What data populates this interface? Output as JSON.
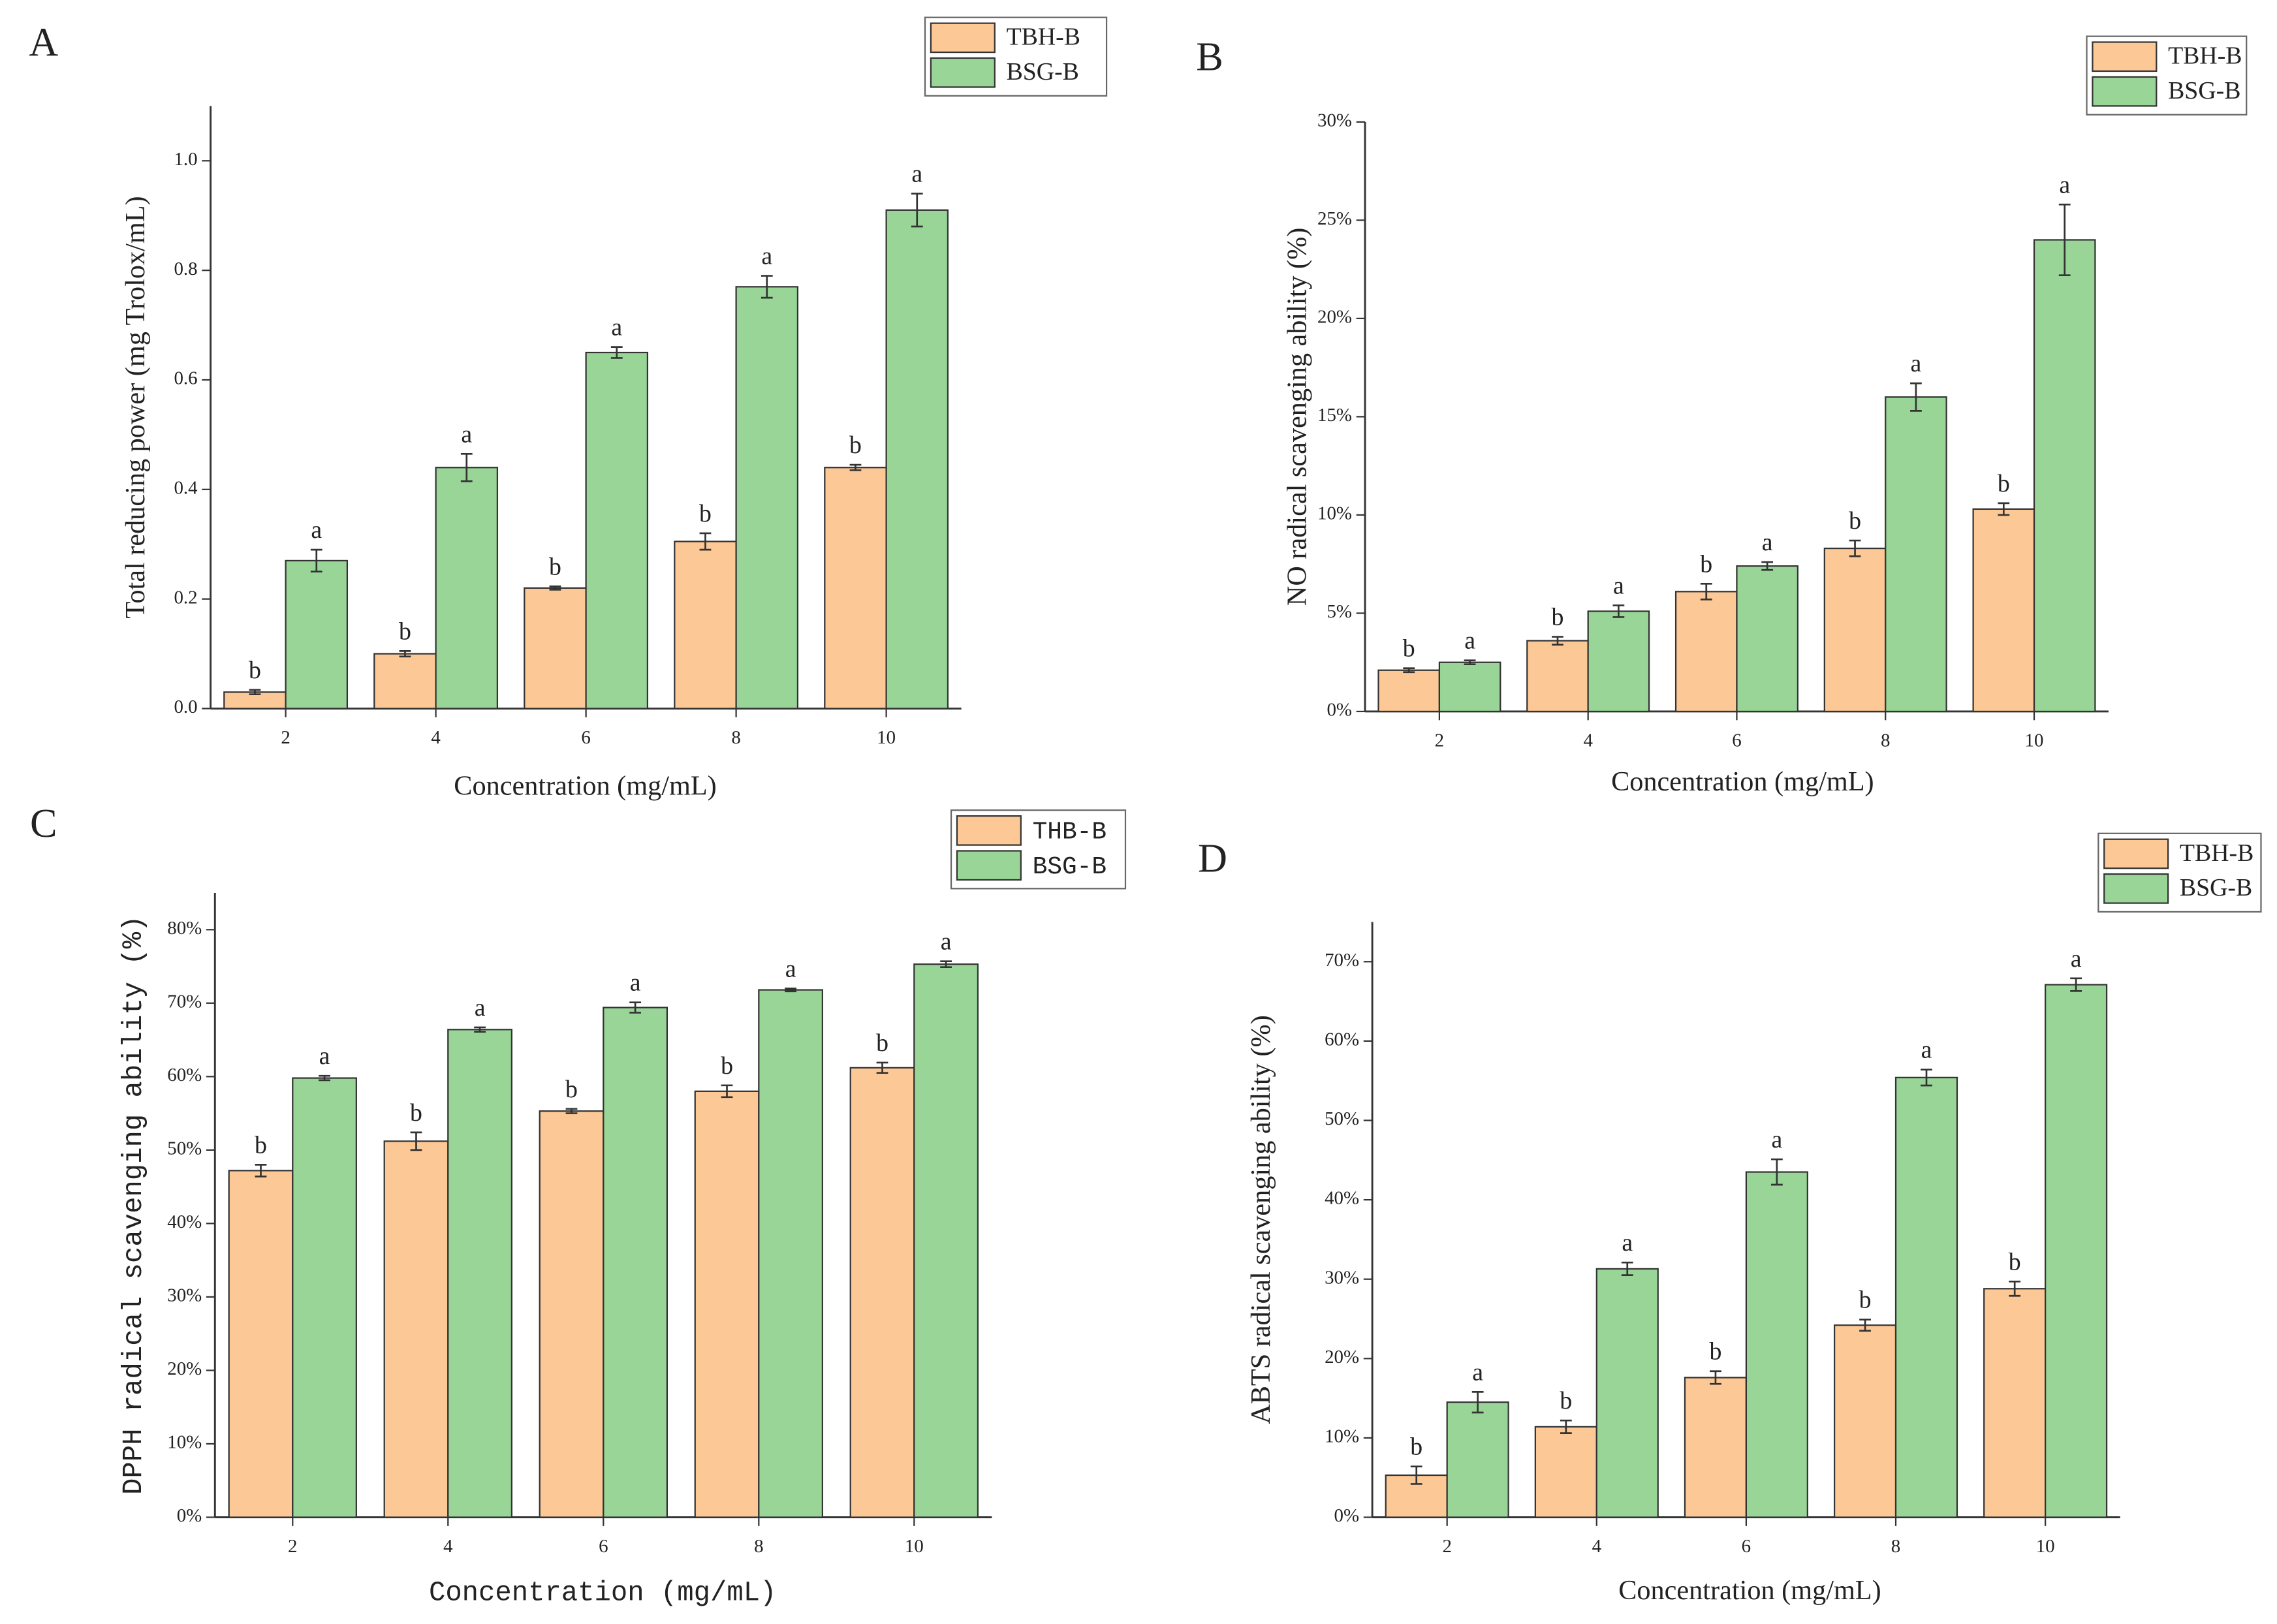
{
  "chart_data": [
    {
      "type": "bar",
      "panel": "A",
      "y_label": "Total reducing power (mg Trolox/mL)",
      "x_label": "Concentration (mg/mL)",
      "categories": [
        "2",
        "4",
        "6",
        "8",
        "10"
      ],
      "series": [
        {
          "name": "TBH-B",
          "color": "#fcc896",
          "values": [
            0.03,
            0.1,
            0.22,
            0.305,
            0.44
          ],
          "errors": [
            0.004,
            0.005,
            0.003,
            0.015,
            0.005
          ],
          "letters": [
            "b",
            "b",
            "b",
            "b",
            "b"
          ]
        },
        {
          "name": "BSG-B",
          "color": "#98d597",
          "values": [
            0.27,
            0.44,
            0.65,
            0.77,
            0.91
          ],
          "errors": [
            0.02,
            0.025,
            0.01,
            0.02,
            0.03
          ],
          "letters": [
            "a",
            "a",
            "a",
            "a",
            "a"
          ]
        }
      ],
      "ylim": [
        0,
        1.1
      ],
      "yticks": [
        {
          "value": 0,
          "label": "0.0"
        },
        0.2,
        0.4,
        0.6,
        0.8,
        {
          "value": 1,
          "label": "1.0"
        }
      ],
      "legend": "top-right"
    },
    {
      "type": "bar",
      "panel": "B",
      "y_label": "NO radical scavenging ability (%)",
      "x_label": "Concentration (mg/mL)",
      "categories": [
        "2",
        "4",
        "6",
        "8",
        "10"
      ],
      "series": [
        {
          "name": "TBH-B",
          "color": "#fcc896",
          "values": [
            2.1,
            3.6,
            6.1,
            8.3,
            10.3
          ],
          "errors": [
            0.1,
            0.2,
            0.4,
            0.4,
            0.3
          ],
          "letters": [
            "b",
            "b",
            "b",
            "b",
            "b"
          ]
        },
        {
          "name": "BSG-B",
          "color": "#98d597",
          "values": [
            2.5,
            5.1,
            7.4,
            16.0,
            24.0
          ],
          "errors": [
            0.1,
            0.3,
            0.2,
            0.7,
            1.8
          ],
          "letters": [
            "a",
            "a",
            "a",
            "a",
            "a"
          ]
        }
      ],
      "ylim": [
        0,
        30
      ],
      "yticks": [
        {
          "value": 0,
          "label": "0%"
        },
        {
          "value": 5,
          "label": "5%"
        },
        {
          "value": 10,
          "label": "10%"
        },
        {
          "value": 15,
          "label": "15%"
        },
        {
          "value": 20,
          "label": "20%"
        },
        {
          "value": 25,
          "label": "25%"
        },
        {
          "value": 30,
          "label": "30%"
        }
      ],
      "legend": "top-right"
    },
    {
      "type": "bar",
      "panel": "C",
      "y_label": "DPPH radical scavenging ability (%)",
      "x_label": "Concentration (mg/mL)",
      "categories": [
        "2",
        "4",
        "6",
        "8",
        "10"
      ],
      "series": [
        {
          "name": "THB-B",
          "color": "#fcc896",
          "values": [
            47.2,
            51.2,
            55.3,
            58.0,
            61.2
          ],
          "errors": [
            0.8,
            1.2,
            0.3,
            0.8,
            0.7
          ],
          "letters": [
            "b",
            "b",
            "b",
            "b",
            "b"
          ]
        },
        {
          "name": "BSG-B",
          "color": "#98d597",
          "values": [
            59.8,
            66.4,
            69.4,
            71.8,
            75.3
          ],
          "errors": [
            0.3,
            0.3,
            0.7,
            0.2,
            0.4
          ],
          "letters": [
            "a",
            "a",
            "a",
            "a",
            "a"
          ]
        }
      ],
      "ylim": [
        0,
        85
      ],
      "yticks": [
        {
          "value": 0,
          "label": "0%"
        },
        {
          "value": 10,
          "label": "10%"
        },
        {
          "value": 20,
          "label": "20%"
        },
        {
          "value": 30,
          "label": "30%"
        },
        {
          "value": 40,
          "label": "40%"
        },
        {
          "value": 50,
          "label": "50%"
        },
        {
          "value": 60,
          "label": "60%"
        },
        {
          "value": 70,
          "label": "70%"
        },
        {
          "value": 80,
          "label": "80%"
        }
      ],
      "legend": "top-right"
    },
    {
      "type": "bar",
      "panel": "D",
      "y_label": "ABTS radical scavenging ability (%)",
      "x_label": "Concentration (mg/mL)",
      "categories": [
        "2",
        "4",
        "6",
        "8",
        "10"
      ],
      "series": [
        {
          "name": "TBH-B",
          "color": "#fcc896",
          "values": [
            5.3,
            11.4,
            17.6,
            24.2,
            28.8
          ],
          "errors": [
            1.1,
            0.8,
            0.8,
            0.7,
            0.9
          ],
          "letters": [
            "b",
            "b",
            "b",
            "b",
            "b"
          ]
        },
        {
          "name": "BSG-B",
          "color": "#98d597",
          "values": [
            14.5,
            31.3,
            43.5,
            55.4,
            67.1
          ],
          "errors": [
            1.3,
            0.8,
            1.6,
            1.0,
            0.8
          ],
          "letters": [
            "a",
            "a",
            "a",
            "a",
            "a"
          ]
        }
      ],
      "ylim": [
        0,
        75
      ],
      "yticks": [
        {
          "value": 0,
          "label": "0%"
        },
        {
          "value": 10,
          "label": "10%"
        },
        {
          "value": 20,
          "label": "20%"
        },
        {
          "value": 30,
          "label": "30%"
        },
        {
          "value": 40,
          "label": "40%"
        },
        {
          "value": 50,
          "label": "50%"
        },
        {
          "value": 60,
          "label": "60%"
        },
        {
          "value": 70,
          "label": "70%"
        }
      ],
      "legend": "top-right"
    }
  ]
}
